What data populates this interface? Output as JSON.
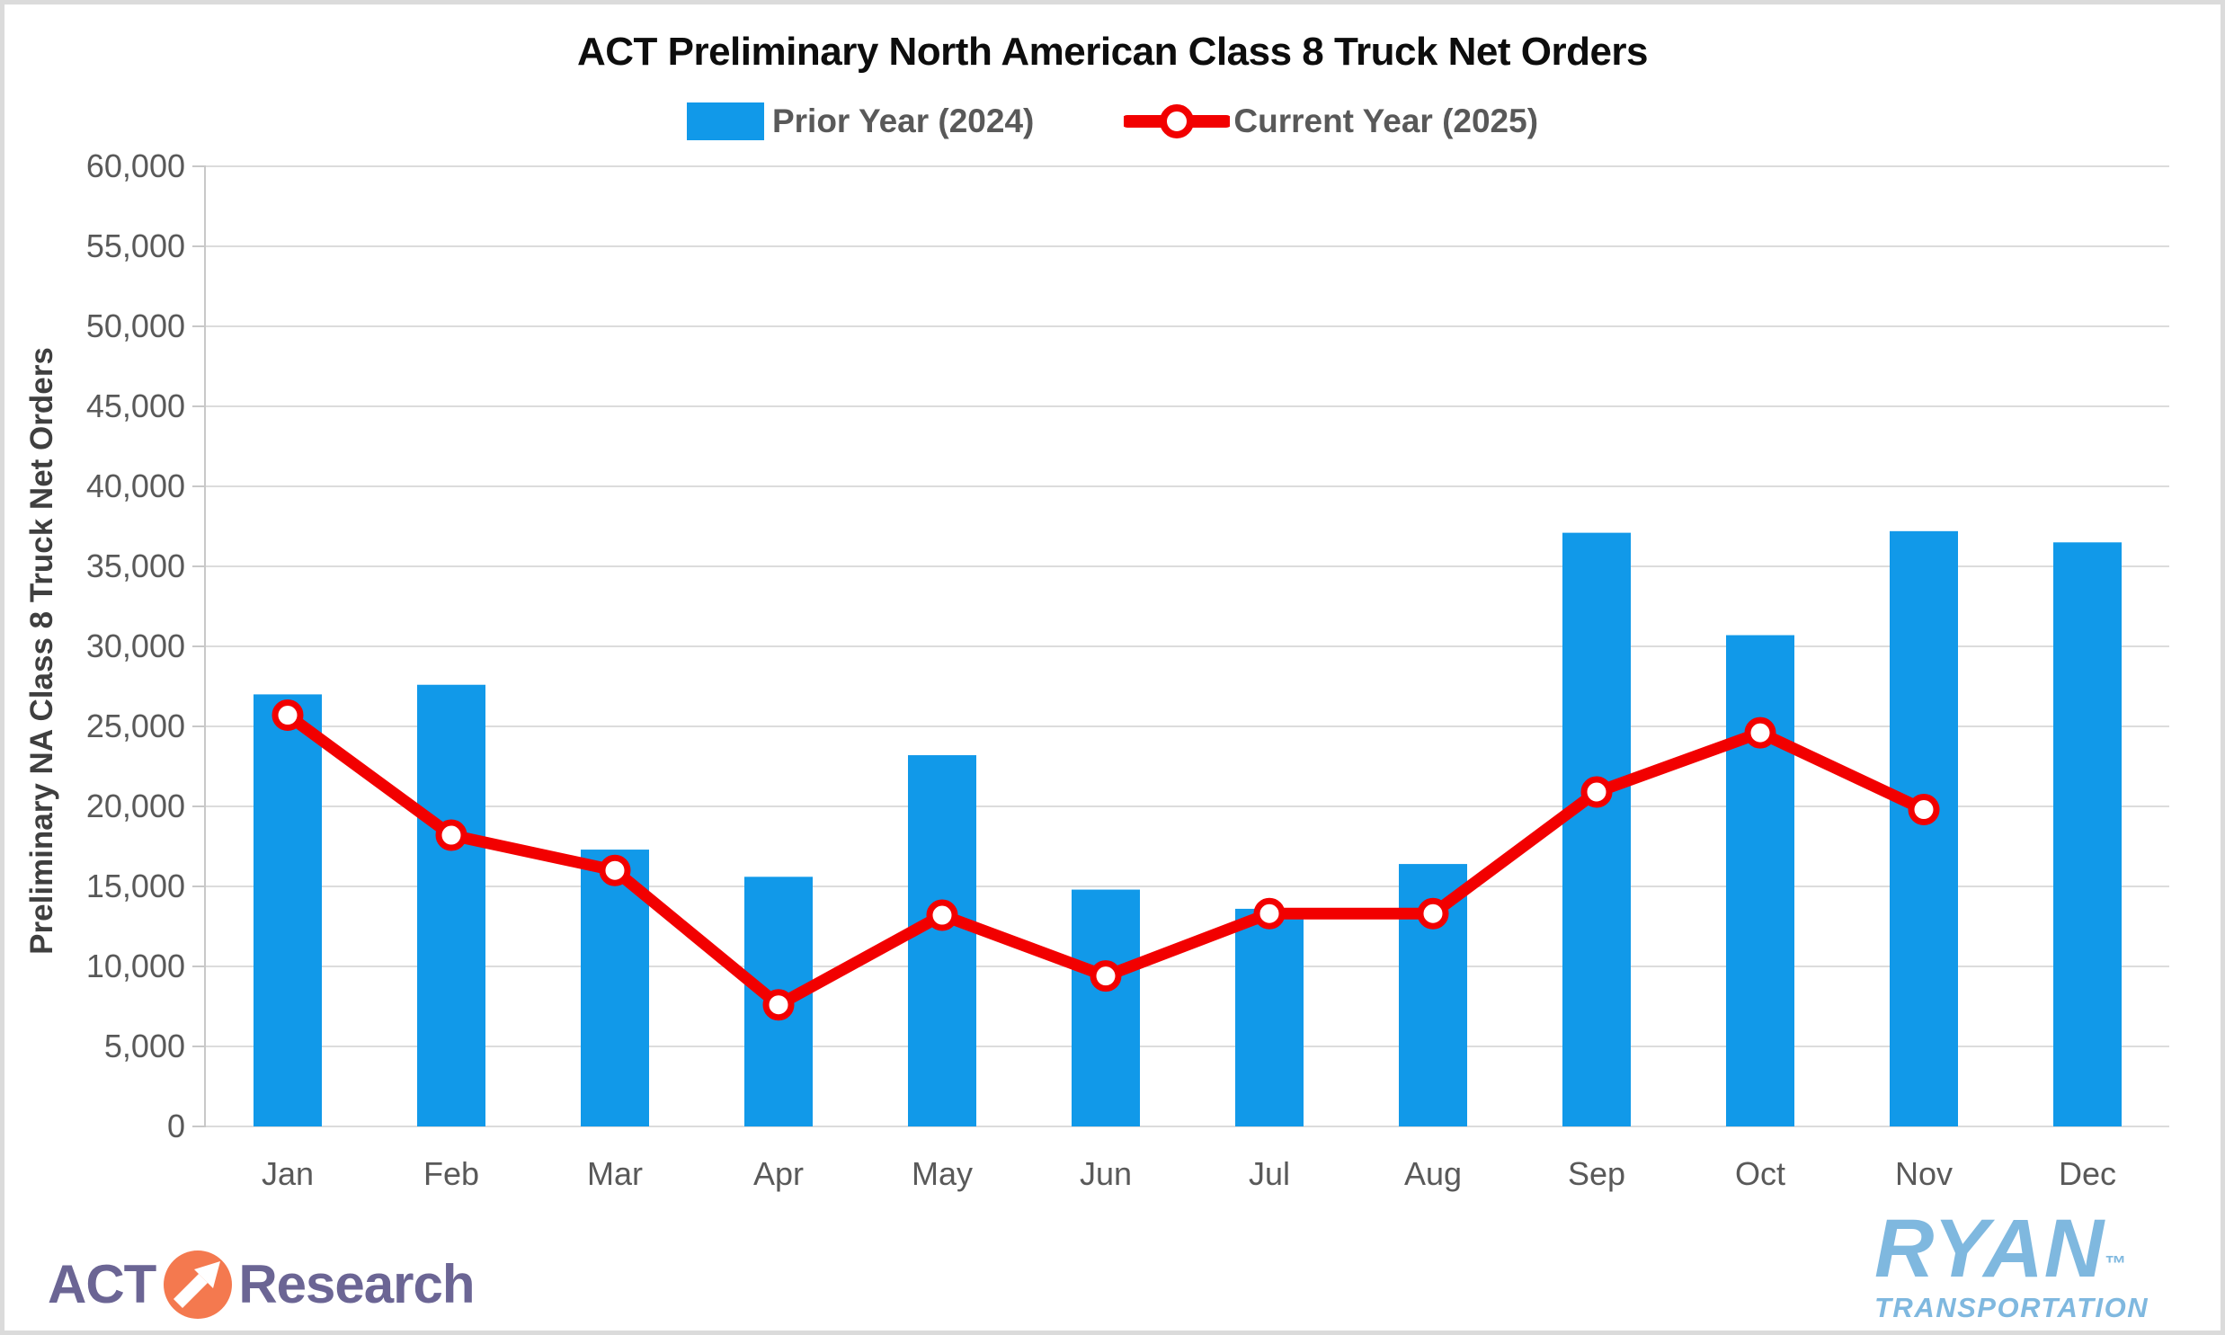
{
  "chart_data": {
    "type": "bar",
    "title": "ACT Preliminary North American Class 8 Truck Net Orders",
    "ylabel": "Preliminary NA Class 8 Truck Net Orders",
    "categories": [
      "Jan",
      "Feb",
      "Mar",
      "Apr",
      "May",
      "Jun",
      "Jul",
      "Aug",
      "Sep",
      "Oct",
      "Nov",
      "Dec"
    ],
    "series": [
      {
        "name": "Prior Year (2024)",
        "kind": "bar",
        "color": "#1199E9",
        "values": [
          27000,
          27600,
          17300,
          15600,
          23200,
          14800,
          13600,
          16400,
          37100,
          30700,
          37200,
          36500
        ]
      },
      {
        "name": "Current Year (2025)",
        "kind": "line",
        "color": "#F20000",
        "values": [
          25700,
          18200,
          16000,
          7600,
          13200,
          9400,
          13300,
          13300,
          20900,
          24600,
          19800,
          null
        ]
      }
    ],
    "ylim": [
      0,
      60000
    ],
    "ytick_step": 5000,
    "ytick_labels": [
      "0",
      "5,000",
      "10,000",
      "15,000",
      "20,000",
      "25,000",
      "30,000",
      "35,000",
      "40,000",
      "45,000",
      "50,000",
      "55,000",
      "60,000"
    ],
    "grid": true,
    "legend_position": "top",
    "grid_color": "#DCDCDC",
    "axis_color": "#C8C8C8",
    "tick_color": "#595959",
    "legend_text_color": "#595959",
    "marker_fill": "#FFFFFF"
  },
  "footer": {
    "act_logo": {
      "act": "ACT",
      "research": "Research",
      "arrow_icon": "arrow-up-right",
      "text_color": "#6B6594",
      "circle_color": "#F4794F"
    },
    "ryan_logo": {
      "name": "RYAN",
      "tm": "™",
      "sub": "TRANSPORTATION",
      "color": "#7FB8DF"
    }
  }
}
